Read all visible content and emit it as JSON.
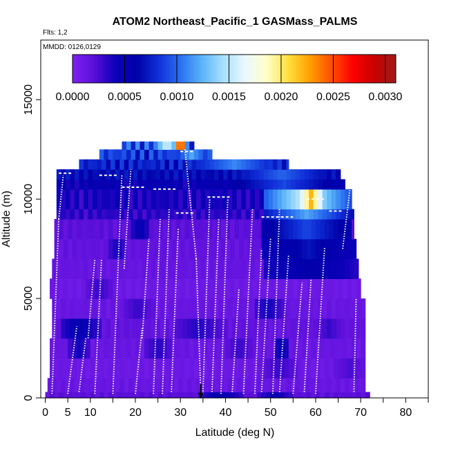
{
  "chart_data": {
    "type": "heatmap",
    "title": "ATOM2 Northeast_Pacific_1 GASMass_PALMS",
    "flights_label": "Flts: 1,2",
    "dates_label": "MMDD: 0126,0129",
    "xlabel": "Latitude (deg N)",
    "ylabel": "Altitude (m)",
    "xlim": [
      -1,
      85
    ],
    "ylim": [
      0,
      18000
    ],
    "x_ticks": [
      0,
      5,
      10,
      20,
      30,
      40,
      50,
      60,
      70,
      80
    ],
    "x_minor_ticks": [
      15,
      25,
      35,
      45,
      55,
      65,
      75,
      85
    ],
    "y_ticks": [
      0,
      5000,
      10000,
      15000
    ],
    "colorbar": {
      "range": [
        0,
        0.0031
      ],
      "ticks": [
        "0.0000",
        "0.0005",
        "0.0010",
        "0.0015",
        "0.0020",
        "0.0025",
        "0.0030"
      ],
      "tick_values": [
        0,
        0.0005,
        0.001,
        0.0015,
        0.002,
        0.0025,
        0.003
      ],
      "colors": [
        "#7f22f0",
        "#5a0fd8",
        "#0a00b8",
        "#0000a8",
        "#1030d8",
        "#2a70f0",
        "#5ab4f8",
        "#a8e0ff",
        "#eaf8ff",
        "#ffffc8",
        "#ffe040",
        "#ffa000",
        "#ff5000",
        "#ff0000",
        "#c80000",
        "#a01818"
      ]
    },
    "marker_latitude": 34.5,
    "altitude_bands": [
      {
        "y0": 0,
        "y1": 300,
        "x0": 0,
        "x1": 72,
        "v": 0.00018,
        "hi": [
          [
            34,
            44,
            0.0005
          ],
          [
            47,
            55,
            0.00045
          ]
        ]
      },
      {
        "y0": 300,
        "y1": 1000,
        "x0": 0.5,
        "x1": 71,
        "v": 0.00012
      },
      {
        "y0": 1000,
        "y1": 2000,
        "x0": 1,
        "x1": 71,
        "v": 0.0001,
        "hi": [
          [
            48,
            56,
            0.0003
          ],
          [
            64,
            71,
            0.00025
          ]
        ]
      },
      {
        "y0": 2000,
        "y1": 3000,
        "x0": 1,
        "x1": 71,
        "v": 0.00012,
        "hi": [
          [
            5,
            10,
            0.0004
          ],
          [
            22,
            28,
            0.00035
          ],
          [
            40,
            46,
            0.0003
          ],
          [
            51,
            54,
            0.0005
          ]
        ]
      },
      {
        "y0": 3000,
        "y1": 4000,
        "x0": 1.5,
        "x1": 71,
        "v": 0.00015,
        "hi": [
          [
            3,
            12,
            0.0005
          ],
          [
            28,
            40,
            0.00035
          ],
          [
            60,
            66,
            0.0003
          ]
        ]
      },
      {
        "y0": 4000,
        "y1": 5000,
        "x0": 1.5,
        "x1": 71,
        "v": 0.00012,
        "hi": [
          [
            17,
            24,
            0.0003
          ],
          [
            46,
            53,
            0.0004
          ]
        ]
      },
      {
        "y0": 5000,
        "y1": 6000,
        "x0": 1,
        "x1": 70,
        "v": 0.0001,
        "hi": [
          [
            9,
            15,
            0.0003
          ]
        ]
      },
      {
        "y0": 6000,
        "y1": 7000,
        "x0": 1.5,
        "x1": 69.5,
        "v": 0.00013,
        "hi": [
          [
            48,
            69,
            0.0006
          ]
        ]
      },
      {
        "y0": 7000,
        "y1": 8000,
        "x0": 2,
        "x1": 69,
        "v": 0.00015,
        "hi": [
          [
            14,
            18,
            0.0004
          ],
          [
            48,
            69,
            0.0007
          ]
        ]
      },
      {
        "y0": 8000,
        "y1": 9000,
        "x0": 2,
        "x1": 68.5,
        "v": 0.00018,
        "hi": [
          [
            19,
            23,
            0.0005
          ],
          [
            48,
            68,
            0.0009
          ]
        ]
      },
      {
        "y0": 9000,
        "y1": 9500,
        "x0": 2.5,
        "x1": 68.5,
        "v": 0.0003,
        "hi": [
          [
            48,
            68,
            0.0012
          ]
        ]
      },
      {
        "y0": 9500,
        "y1": 10500,
        "x0": 2.5,
        "x1": 68,
        "v": 0.00035,
        "hi": [
          [
            48,
            68,
            0.0016
          ],
          [
            56,
            62,
            0.0022
          ]
        ]
      },
      {
        "y0": 10500,
        "y1": 11000,
        "x0": 2.5,
        "x1": 66.5,
        "v": 0.00045,
        "hi": [
          [
            40,
            66,
            0.0009
          ]
        ]
      },
      {
        "y0": 11000,
        "y1": 11500,
        "x0": 2.5,
        "x1": 65.5,
        "v": 0.0006,
        "hi": [
          [
            40,
            65,
            0.001
          ]
        ]
      },
      {
        "y0": 11500,
        "y1": 12000,
        "x0": 7.5,
        "x1": 54,
        "v": 0.0007,
        "hi": [
          [
            30,
            54,
            0.0011
          ]
        ]
      },
      {
        "y0": 12000,
        "y1": 12500,
        "x0": 12,
        "x1": 37,
        "v": 0.0008,
        "hi": [
          [
            28,
            37,
            0.0012
          ]
        ]
      },
      {
        "y0": 12500,
        "y1": 12900,
        "x0": 17,
        "x1": 33,
        "v": 0.0009,
        "hi": [
          [
            24,
            30,
            0.0016
          ],
          [
            29,
            31,
            0.0028
          ]
        ]
      }
    ],
    "profiles": [
      {
        "x": [
          1.5,
          3
        ],
        "y": [
          200,
          9000
        ]
      },
      {
        "x": [
          3,
          4
        ],
        "y": [
          9000,
          11200
        ]
      },
      {
        "x": [
          5,
          7
        ],
        "y": [
          200,
          3600
        ]
      },
      {
        "x": [
          7.5,
          9
        ],
        "y": [
          300,
          3000
        ]
      },
      {
        "x": [
          9.5,
          11
        ],
        "y": [
          3000,
          7000
        ]
      },
      {
        "x": [
          11,
          12.5
        ],
        "y": [
          200,
          7000
        ]
      },
      {
        "x": [
          15,
          17
        ],
        "y": [
          200,
          11200
        ]
      },
      {
        "x": [
          17.5,
          19
        ],
        "y": [
          6500,
          11500
        ]
      },
      {
        "x": [
          20,
          21.5
        ],
        "y": [
          200,
          3500
        ]
      },
      {
        "x": [
          21.5,
          23
        ],
        "y": [
          3000,
          8000
        ]
      },
      {
        "x": [
          24,
          25.5
        ],
        "y": [
          200,
          9000
        ]
      },
      {
        "x": [
          26,
          27.5
        ],
        "y": [
          200,
          9500
        ]
      },
      {
        "x": [
          28,
          29.5
        ],
        "y": [
          300,
          8500
        ]
      },
      {
        "x": [
          31,
          33.5
        ],
        "y": [
          12500,
          7000
        ]
      },
      {
        "x": [
          33.5,
          34.5
        ],
        "y": [
          7000,
          300
        ]
      },
      {
        "x": [
          35,
          36.5
        ],
        "y": [
          200,
          10000
        ]
      },
      {
        "x": [
          37,
          38.5
        ],
        "y": [
          300,
          9000
        ]
      },
      {
        "x": [
          39,
          40.5
        ],
        "y": [
          200,
          10000
        ]
      },
      {
        "x": [
          41.5,
          43
        ],
        "y": [
          300,
          5500
        ]
      },
      {
        "x": [
          44,
          46
        ],
        "y": [
          200,
          9500
        ]
      },
      {
        "x": [
          46.5,
          48
        ],
        "y": [
          200,
          7500
        ]
      },
      {
        "x": [
          48,
          50
        ],
        "y": [
          300,
          8000
        ]
      },
      {
        "x": [
          50.5,
          52
        ],
        "y": [
          200,
          9500
        ]
      },
      {
        "x": [
          52,
          54
        ],
        "y": [
          300,
          7200
        ]
      },
      {
        "x": [
          55,
          57
        ],
        "y": [
          200,
          5800
        ]
      },
      {
        "x": [
          57.5,
          59
        ],
        "y": [
          300,
          6000
        ]
      },
      {
        "x": [
          60,
          62
        ],
        "y": [
          200,
          7600
        ]
      },
      {
        "x": [
          66,
          68
        ],
        "y": [
          7500,
          11200
        ]
      },
      {
        "x": [
          68.5,
          69
        ],
        "y": [
          300,
          5000
        ]
      }
    ],
    "level_segments": [
      {
        "x": [
          3,
          6
        ],
        "y": 11300
      },
      {
        "x": [
          12,
          16
        ],
        "y": 11200
      },
      {
        "x": [
          17,
          22
        ],
        "y": 10600
      },
      {
        "x": [
          30,
          33
        ],
        "y": 12400
      },
      {
        "x": [
          24,
          29
        ],
        "y": 10500
      },
      {
        "x": [
          36,
          41
        ],
        "y": 10100
      },
      {
        "x": [
          29,
          33
        ],
        "y": 9300
      },
      {
        "x": [
          48,
          55
        ],
        "y": 9100
      },
      {
        "x": [
          58,
          62
        ],
        "y": 10000
      },
      {
        "x": [
          63,
          66
        ],
        "y": 9400
      }
    ]
  }
}
